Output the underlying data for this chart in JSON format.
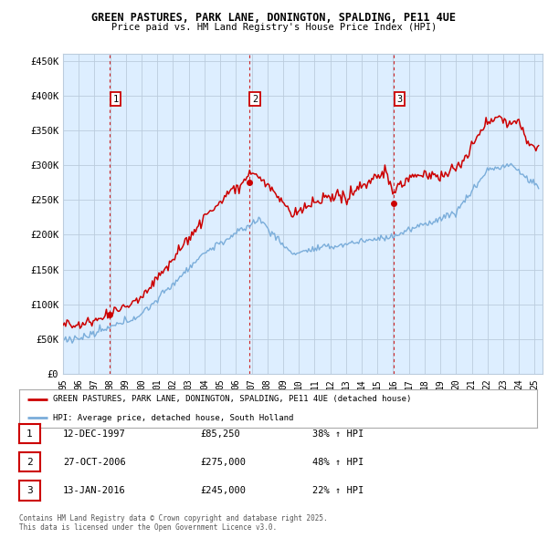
{
  "title": "GREEN PASTURES, PARK LANE, DONINGTON, SPALDING, PE11 4UE",
  "subtitle": "Price paid vs. HM Land Registry's House Price Index (HPI)",
  "ylim": [
    0,
    460000
  ],
  "yticks": [
    0,
    50000,
    100000,
    150000,
    200000,
    250000,
    300000,
    350000,
    400000,
    450000
  ],
  "ytick_labels": [
    "£0",
    "£50K",
    "£100K",
    "£150K",
    "£200K",
    "£250K",
    "£300K",
    "£350K",
    "£400K",
    "£450K"
  ],
  "xlim_start": 1995.0,
  "xlim_end": 2025.5,
  "sales": [
    {
      "date": 1997.95,
      "price": 85250,
      "label": "1"
    },
    {
      "date": 2006.83,
      "price": 275000,
      "label": "2"
    },
    {
      "date": 2016.04,
      "price": 245000,
      "label": "3"
    }
  ],
  "sale_color": "#cc0000",
  "hpi_color": "#7aadda",
  "chart_bg": "#ddeeff",
  "legend_property": "GREEN PASTURES, PARK LANE, DONINGTON, SPALDING, PE11 4UE (detached house)",
  "legend_hpi": "HPI: Average price, detached house, South Holland",
  "table_rows": [
    {
      "num": "1",
      "date": "12-DEC-1997",
      "price": "£85,250",
      "pct": "38% ↑ HPI"
    },
    {
      "num": "2",
      "date": "27-OCT-2006",
      "price": "£275,000",
      "pct": "48% ↑ HPI"
    },
    {
      "num": "3",
      "date": "13-JAN-2016",
      "price": "£245,000",
      "pct": "22% ↑ HPI"
    }
  ],
  "footnote": "Contains HM Land Registry data © Crown copyright and database right 2025.\nThis data is licensed under the Open Government Licence v3.0.",
  "background_color": "#ffffff",
  "grid_color": "#bbccdd"
}
